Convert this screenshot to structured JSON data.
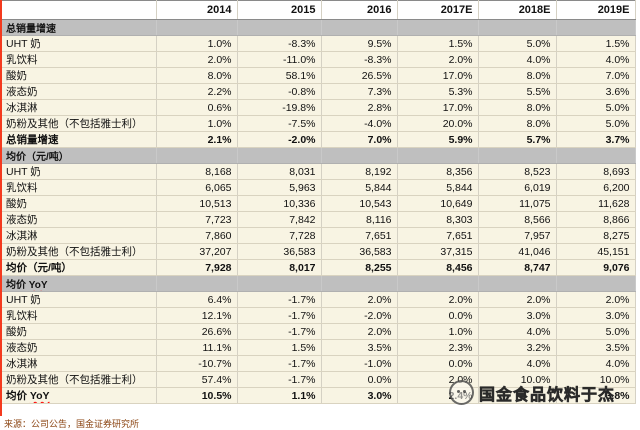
{
  "colors": {
    "accent_red_line": "#f43a1e",
    "row_beige": "#f8f4e3",
    "section_gray": "#bfbfbf",
    "wavy_underline_red": "#ff0000",
    "footer_text_brown": "#8b4513"
  },
  "table": {
    "corner": "",
    "columns": [
      "2014",
      "2015",
      "2016",
      "2017E",
      "2018E",
      "2019E"
    ],
    "rows": [
      {
        "type": "section",
        "label": "总销量增速",
        "values": [
          "",
          "",
          "",
          "",
          "",
          ""
        ]
      },
      {
        "type": "data",
        "label": "UHT 奶",
        "values": [
          "1.0%",
          "-8.3%",
          "9.5%",
          "1.5%",
          "5.0%",
          "1.5%"
        ]
      },
      {
        "type": "data",
        "label": "乳饮料",
        "values": [
          "2.0%",
          "-11.0%",
          "-8.3%",
          "2.0%",
          "4.0%",
          "4.0%"
        ]
      },
      {
        "type": "data",
        "label": "酸奶",
        "values": [
          "8.0%",
          "58.1%",
          "26.5%",
          "17.0%",
          "8.0%",
          "7.0%"
        ]
      },
      {
        "type": "data",
        "label": "液态奶",
        "values": [
          "2.2%",
          "-0.8%",
          "7.3%",
          "5.3%",
          "5.5%",
          "3.6%"
        ]
      },
      {
        "type": "data",
        "label": "冰淇淋",
        "values": [
          "0.6%",
          "-19.8%",
          "2.8%",
          "17.0%",
          "8.0%",
          "5.0%"
        ]
      },
      {
        "type": "data",
        "label": "奶粉及其他（不包括雅士利）",
        "values": [
          "1.0%",
          "-7.5%",
          "-4.0%",
          "20.0%",
          "8.0%",
          "5.0%"
        ]
      },
      {
        "type": "total",
        "label": "总销量增速",
        "values": [
          "2.1%",
          "-2.0%",
          "7.0%",
          "5.9%",
          "5.7%",
          "3.7%"
        ]
      },
      {
        "type": "section",
        "label": "均价（元/吨）",
        "values": [
          "",
          "",
          "",
          "",
          "",
          ""
        ]
      },
      {
        "type": "data",
        "label": "UHT 奶",
        "values": [
          "8,168",
          "8,031",
          "8,192",
          "8,356",
          "8,523",
          "8,693"
        ]
      },
      {
        "type": "data",
        "label": "乳饮料",
        "values": [
          "6,065",
          "5,963",
          "5,844",
          "5,844",
          "6,019",
          "6,200"
        ]
      },
      {
        "type": "data",
        "label": "酸奶",
        "values": [
          "10,513",
          "10,336",
          "10,543",
          "10,649",
          "11,075",
          "11,628"
        ]
      },
      {
        "type": "data",
        "label": "液态奶",
        "values": [
          "7,723",
          "7,842",
          "8,116",
          "8,303",
          "8,566",
          "8,866"
        ]
      },
      {
        "type": "data",
        "label": "冰淇淋",
        "values": [
          "7,860",
          "7,728",
          "7,651",
          "7,651",
          "7,957",
          "8,275"
        ]
      },
      {
        "type": "data",
        "label": "奶粉及其他（不包括雅士利）",
        "values": [
          "37,207",
          "36,583",
          "36,583",
          "37,315",
          "41,046",
          "45,151"
        ]
      },
      {
        "type": "total",
        "label": "均价（元/吨）",
        "values": [
          "7,928",
          "8,017",
          "8,255",
          "8,456",
          "8,747",
          "9,076"
        ]
      },
      {
        "type": "section",
        "label": "均价 YoY",
        "label_main": "均价",
        "label_wavy": "YoY",
        "values": [
          "",
          "",
          "",
          "",
          "",
          ""
        ]
      },
      {
        "type": "data",
        "label": "UHT 奶",
        "values": [
          "6.4%",
          "-1.7%",
          "2.0%",
          "2.0%",
          "2.0%",
          "2.0%"
        ]
      },
      {
        "type": "data",
        "label": "乳饮料",
        "values": [
          "12.1%",
          "-1.7%",
          "-2.0%",
          "0.0%",
          "3.0%",
          "3.0%"
        ]
      },
      {
        "type": "data",
        "label": "酸奶",
        "values": [
          "26.6%",
          "-1.7%",
          "2.0%",
          "1.0%",
          "4.0%",
          "5.0%"
        ]
      },
      {
        "type": "data",
        "label": "液态奶",
        "values": [
          "11.1%",
          "1.5%",
          "3.5%",
          "2.3%",
          "3.2%",
          "3.5%"
        ]
      },
      {
        "type": "data",
        "label": "冰淇淋",
        "values": [
          "-10.7%",
          "-1.7%",
          "-1.0%",
          "0.0%",
          "4.0%",
          "4.0%"
        ]
      },
      {
        "type": "data",
        "label": "奶粉及其他（不包括雅士利）",
        "values": [
          "57.4%",
          "-1.7%",
          "0.0%",
          "2.0%",
          "10.0%",
          "10.0%"
        ]
      },
      {
        "type": "total",
        "label": "均价 YoY",
        "label_main": "均价",
        "label_wavy": "YoY",
        "values": [
          "10.5%",
          "1.1%",
          "3.0%",
          "2.4%",
          "",
          "3.8%"
        ]
      }
    ]
  },
  "footer": {
    "source_text": "来源：公司公告，国金证券研究所"
  },
  "watermark": {
    "text": "国金食品饮料于杰",
    "logo": "circular-stamp-icon"
  }
}
